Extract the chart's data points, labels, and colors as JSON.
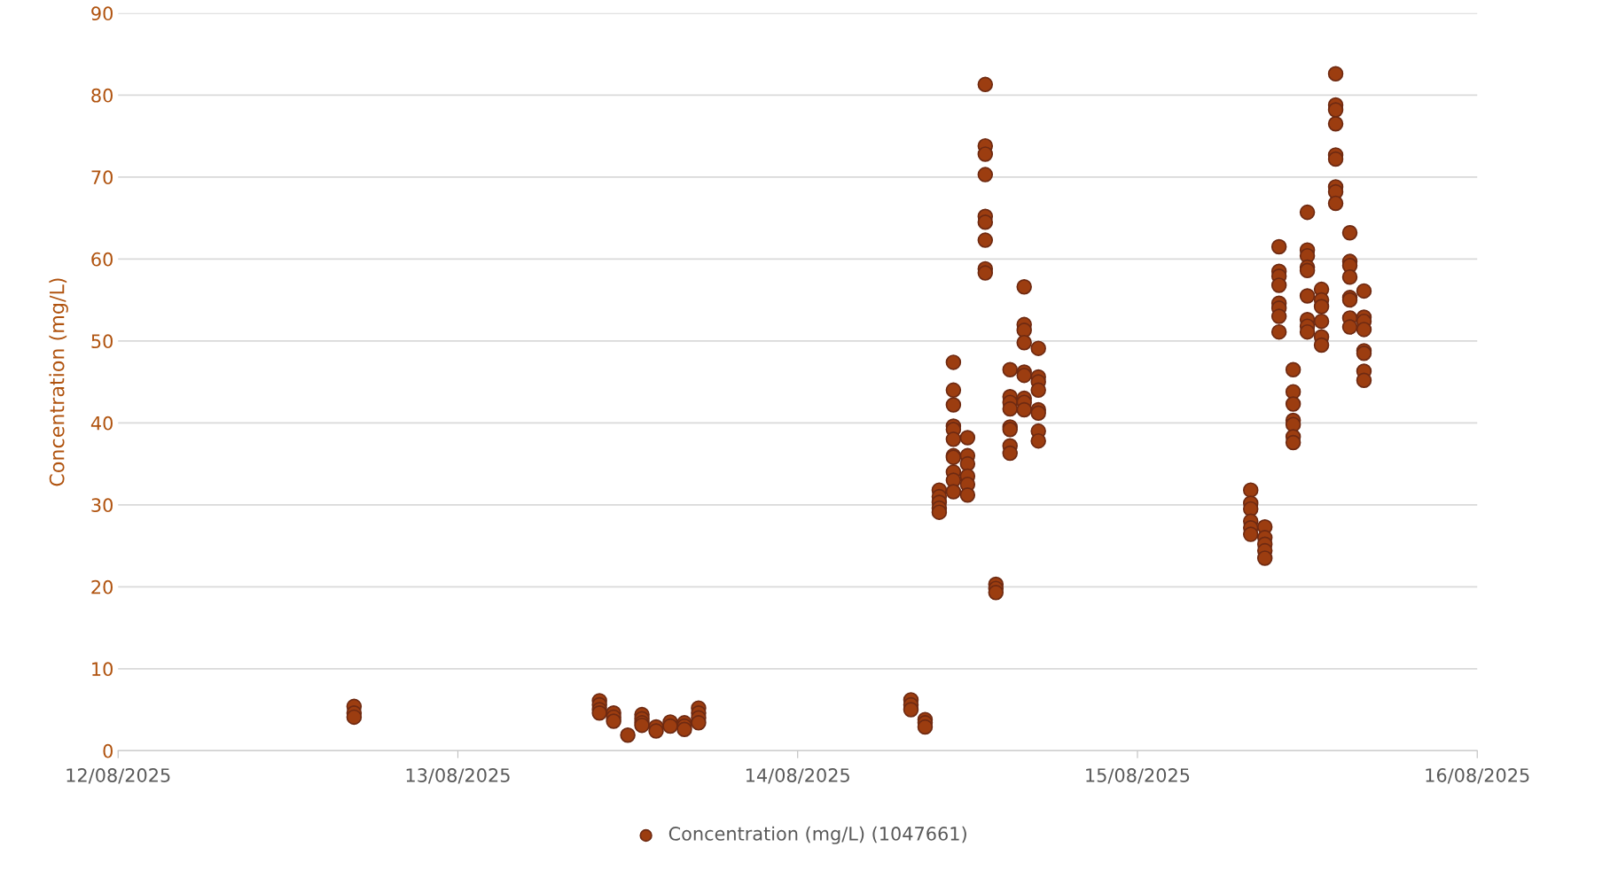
{
  "chart_data": {
    "type": "scatter",
    "ylabel": "Concentration (mg/L)",
    "xlim": [
      "2025-08-12",
      "2025-08-16"
    ],
    "xticks": [
      {
        "value": "2025-08-12",
        "label": "12/08/2025"
      },
      {
        "value": "2025-08-13",
        "label": "13/08/2025"
      },
      {
        "value": "2025-08-14",
        "label": "14/08/2025"
      },
      {
        "value": "2025-08-15",
        "label": "15/08/2025"
      },
      {
        "value": "2025-08-16",
        "label": "16/08/2025"
      }
    ],
    "ylim": [
      0,
      90
    ],
    "yticks": [
      0,
      10,
      20,
      30,
      40,
      50,
      60,
      70,
      80,
      90
    ],
    "grid": "y",
    "legend": "bottom",
    "marker": "circle",
    "series": [
      {
        "name": "Concentration (mg/L) (1047661)",
        "color": "#9c3d10",
        "x": [
          "2025-08-12T16:40",
          "2025-08-12T16:40",
          "2025-08-12T16:40",
          "2025-08-13T10:00",
          "2025-08-13T10:00",
          "2025-08-13T10:00",
          "2025-08-13T10:00",
          "2025-08-13T11:00",
          "2025-08-13T11:00",
          "2025-08-13T11:00",
          "2025-08-13T12:00",
          "2025-08-13T13:00",
          "2025-08-13T13:00",
          "2025-08-13T13:00",
          "2025-08-13T13:00",
          "2025-08-13T14:00",
          "2025-08-13T14:00",
          "2025-08-13T15:00",
          "2025-08-13T15:00",
          "2025-08-13T16:00",
          "2025-08-13T16:00",
          "2025-08-13T16:00",
          "2025-08-13T17:00",
          "2025-08-13T17:00",
          "2025-08-13T17:00",
          "2025-08-13T17:00",
          "2025-08-14T08:00",
          "2025-08-14T08:00",
          "2025-08-14T08:00",
          "2025-08-14T09:00",
          "2025-08-14T09:00",
          "2025-08-14T09:00",
          "2025-08-14T10:00",
          "2025-08-14T10:00",
          "2025-08-14T10:00",
          "2025-08-14T10:00",
          "2025-08-14T10:00",
          "2025-08-14T11:00",
          "2025-08-14T11:00",
          "2025-08-14T11:00",
          "2025-08-14T11:00",
          "2025-08-14T11:00",
          "2025-08-14T11:00",
          "2025-08-14T11:00",
          "2025-08-14T11:00",
          "2025-08-14T11:00",
          "2025-08-14T11:00",
          "2025-08-14T11:00",
          "2025-08-14T12:00",
          "2025-08-14T12:00",
          "2025-08-14T12:00",
          "2025-08-14T12:00",
          "2025-08-14T12:00",
          "2025-08-14T12:00",
          "2025-08-14T13:15",
          "2025-08-14T13:15",
          "2025-08-14T13:15",
          "2025-08-14T13:15",
          "2025-08-14T13:15",
          "2025-08-14T13:15",
          "2025-08-14T13:15",
          "2025-08-14T13:15",
          "2025-08-14T13:15",
          "2025-08-14T14:00",
          "2025-08-14T14:00",
          "2025-08-14T14:00",
          "2025-08-14T15:00",
          "2025-08-14T15:00",
          "2025-08-14T15:00",
          "2025-08-14T15:00",
          "2025-08-14T15:00",
          "2025-08-14T15:00",
          "2025-08-14T15:00",
          "2025-08-14T15:00",
          "2025-08-14T16:00",
          "2025-08-14T16:00",
          "2025-08-14T16:00",
          "2025-08-14T16:00",
          "2025-08-14T16:00",
          "2025-08-14T16:00",
          "2025-08-14T16:00",
          "2025-08-14T16:00",
          "2025-08-14T16:00",
          "2025-08-14T17:00",
          "2025-08-14T17:00",
          "2025-08-14T17:00",
          "2025-08-14T17:00",
          "2025-08-14T17:00",
          "2025-08-14T17:00",
          "2025-08-14T17:00",
          "2025-08-14T17:00",
          "2025-08-15T08:00",
          "2025-08-15T08:00",
          "2025-08-15T08:00",
          "2025-08-15T08:00",
          "2025-08-15T08:00",
          "2025-08-15T08:00",
          "2025-08-15T09:00",
          "2025-08-15T09:00",
          "2025-08-15T09:00",
          "2025-08-15T09:00",
          "2025-08-15T09:00",
          "2025-08-15T10:00",
          "2025-08-15T10:00",
          "2025-08-15T10:00",
          "2025-08-15T10:00",
          "2025-08-15T10:00",
          "2025-08-15T10:00",
          "2025-08-15T10:00",
          "2025-08-15T10:00",
          "2025-08-15T11:00",
          "2025-08-15T11:00",
          "2025-08-15T11:00",
          "2025-08-15T11:00",
          "2025-08-15T11:00",
          "2025-08-15T11:00",
          "2025-08-15T11:00",
          "2025-08-15T12:00",
          "2025-08-15T12:00",
          "2025-08-15T12:00",
          "2025-08-15T12:00",
          "2025-08-15T12:00",
          "2025-08-15T12:00",
          "2025-08-15T12:00",
          "2025-08-15T12:00",
          "2025-08-15T12:00",
          "2025-08-15T13:00",
          "2025-08-15T13:00",
          "2025-08-15T13:00",
          "2025-08-15T13:00",
          "2025-08-15T13:00",
          "2025-08-15T13:00",
          "2025-08-15T14:00",
          "2025-08-15T14:00",
          "2025-08-15T14:00",
          "2025-08-15T14:00",
          "2025-08-15T14:00",
          "2025-08-15T14:00",
          "2025-08-15T14:00",
          "2025-08-15T14:00",
          "2025-08-15T14:00",
          "2025-08-15T15:00",
          "2025-08-15T15:00",
          "2025-08-15T15:00",
          "2025-08-15T15:00",
          "2025-08-15T15:00",
          "2025-08-15T15:00",
          "2025-08-15T15:00",
          "2025-08-15T15:00",
          "2025-08-15T16:00",
          "2025-08-15T16:00",
          "2025-08-15T16:00",
          "2025-08-15T16:00",
          "2025-08-15T16:00",
          "2025-08-15T16:00",
          "2025-08-15T16:00",
          "2025-08-15T16:00"
        ],
        "values": [
          5.4,
          4.6,
          4.1,
          6.1,
          5.6,
          5.0,
          4.6,
          4.6,
          4.1,
          3.6,
          1.9,
          4.4,
          3.9,
          3.4,
          3.1,
          2.9,
          2.4,
          3.5,
          3.0,
          3.4,
          3.0,
          2.6,
          5.2,
          4.6,
          4.0,
          3.4,
          6.2,
          5.6,
          5.0,
          3.8,
          3.4,
          2.9,
          31.8,
          31.0,
          30.3,
          29.6,
          29.1,
          47.4,
          44.0,
          42.2,
          39.6,
          39.2,
          38.0,
          36.0,
          35.8,
          34.0,
          33.0,
          31.6,
          38.2,
          36.0,
          35.0,
          33.5,
          32.5,
          31.2,
          81.3,
          73.8,
          72.8,
          70.3,
          65.2,
          64.5,
          62.3,
          58.8,
          58.3,
          20.3,
          19.8,
          19.3,
          46.5,
          43.2,
          42.5,
          41.7,
          39.5,
          39.2,
          37.2,
          36.3,
          56.6,
          52.0,
          51.3,
          49.8,
          46.2,
          45.8,
          43.0,
          42.5,
          41.6,
          49.1,
          45.6,
          45.0,
          44.0,
          41.6,
          41.2,
          39.0,
          37.8,
          31.8,
          30.2,
          29.5,
          28.0,
          27.2,
          26.4,
          27.3,
          26.0,
          25.2,
          24.4,
          23.5,
          61.5,
          58.5,
          57.9,
          56.8,
          54.6,
          54.0,
          53.0,
          51.1,
          46.5,
          43.8,
          42.3,
          40.3,
          39.8,
          38.3,
          37.6,
          65.7,
          61.1,
          60.4,
          59.0,
          58.6,
          55.5,
          52.6,
          51.8,
          51.1,
          56.3,
          55.0,
          54.2,
          52.4,
          50.5,
          49.5,
          82.6,
          78.8,
          78.2,
          76.5,
          72.7,
          72.2,
          68.8,
          68.2,
          66.8,
          63.2,
          59.7,
          59.2,
          57.8,
          55.3,
          55.0,
          52.8,
          51.7,
          56.1,
          52.9,
          52.4,
          51.4,
          48.8,
          48.5,
          46.3,
          45.2
        ]
      }
    ]
  }
}
